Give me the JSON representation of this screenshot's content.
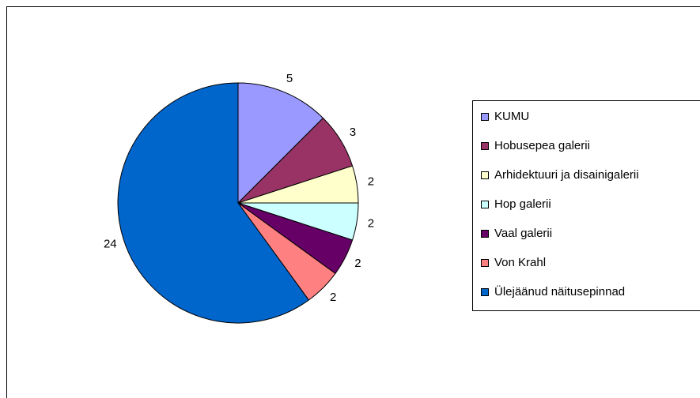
{
  "chart_data": {
    "type": "pie",
    "categories": [
      "KUMU",
      "Hobusepea galerii",
      "Arhidektuuri ja disainigalerii",
      "Hop galerii",
      "Vaal galerii",
      "Von Krahl",
      "Ülejäänud näitusepinnad"
    ],
    "values": [
      5,
      3,
      2,
      2,
      2,
      2,
      24
    ],
    "colors": [
      "#9999ff",
      "#993366",
      "#ffffcc",
      "#ccffff",
      "#660066",
      "#ff8080",
      "#0066cc"
    ],
    "legend": "right"
  }
}
